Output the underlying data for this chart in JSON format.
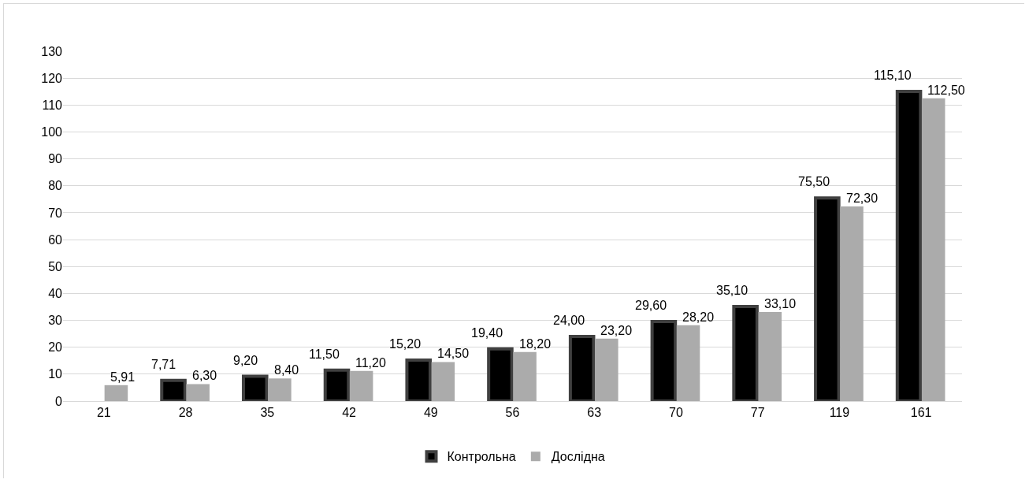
{
  "chart_data": {
    "type": "bar",
    "categories": [
      "21",
      "28",
      "35",
      "42",
      "49",
      "56",
      "63",
      "70",
      "77",
      "119",
      "161"
    ],
    "series": [
      {
        "name": "Контрольна",
        "color": "#000000",
        "values": [
          null,
          7.71,
          9.2,
          11.5,
          15.2,
          19.4,
          24,
          29.6,
          35.1,
          75.5,
          115.1
        ],
        "value_labels": [
          null,
          "7,71",
          "9,20",
          "11,50",
          "15,20",
          "19,40",
          "24,00",
          "29,60",
          "35,10",
          "75,50",
          "115,10"
        ]
      },
      {
        "name": "Дослідна",
        "color": "#ababab",
        "values": [
          5.91,
          6.3,
          8.4,
          11.2,
          14.5,
          18.2,
          23.2,
          28.2,
          33.1,
          72.3,
          112.5
        ],
        "value_labels": [
          "5,91",
          "6,30",
          "8,40",
          "11,20",
          "14,50",
          "18,20",
          "23,20",
          "28,20",
          "33,10",
          "72,30",
          "112,50"
        ]
      }
    ],
    "ylim": [
      0,
      130
    ],
    "yticks": [
      0,
      10,
      20,
      30,
      40,
      50,
      60,
      70,
      80,
      90,
      100,
      110,
      120,
      130
    ],
    "grid": "y",
    "legend": "bottom"
  }
}
